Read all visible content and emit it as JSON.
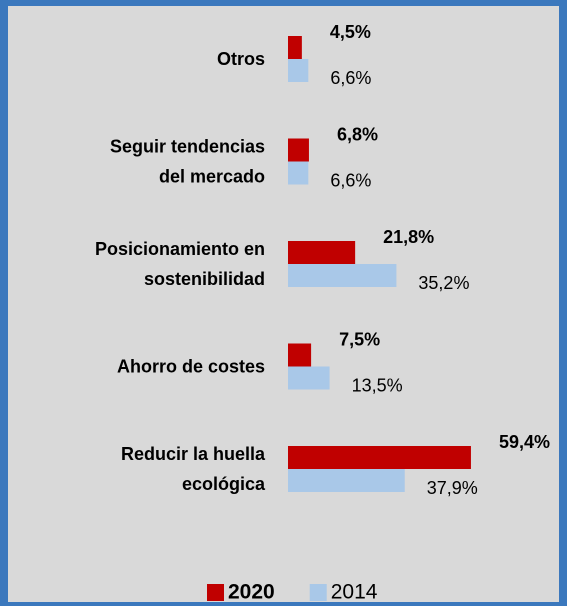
{
  "chart_data": {
    "type": "bar",
    "orientation": "horizontal",
    "categories": [
      [
        "Otros"
      ],
      [
        "Seguir tendencias",
        "del mercado"
      ],
      [
        "Posicionamiento en",
        "sostenibilidad"
      ],
      [
        "Ahorro de costes"
      ],
      [
        "Reducir la huella",
        "ecológica"
      ]
    ],
    "series": [
      {
        "name": "2020",
        "color": "#c00000",
        "values": [
          4.5,
          6.8,
          21.8,
          7.5,
          59.4
        ],
        "value_labels": [
          "4,5%",
          "6,8%",
          "21,8%",
          "7,5%",
          "59,4%"
        ]
      },
      {
        "name": "2014",
        "color": "#a9c8e8",
        "values": [
          6.6,
          6.6,
          35.2,
          13.5,
          37.9
        ],
        "value_labels": [
          "6,6%",
          "6,6%",
          "35,2%",
          "13,5%",
          "37,9%"
        ]
      }
    ],
    "legend": "bottom"
  }
}
